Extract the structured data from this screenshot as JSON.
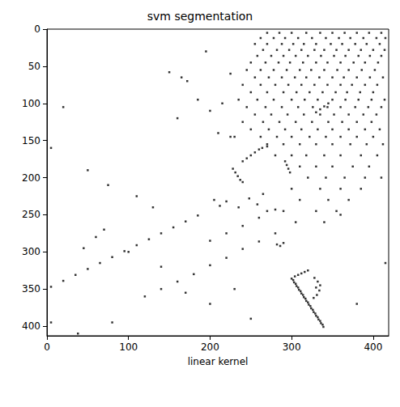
{
  "chart_data": {
    "type": "scatter",
    "title": "svm segmentation",
    "x_label": "linear kernel",
    "marker": "square",
    "color": "#000000",
    "grid": false,
    "xlim": [
      0,
      419
    ],
    "ylim": [
      0,
      413
    ],
    "xticks": [
      0,
      100,
      200,
      300,
      400
    ],
    "yticks": [
      0,
      50,
      100,
      150,
      200,
      250,
      300,
      350,
      400
    ],
    "x": [
      300,
      303,
      306,
      309,
      312,
      315,
      318,
      321,
      324,
      327,
      330,
      333,
      336,
      339,
      302,
      305,
      308,
      311,
      314,
      317,
      320,
      323,
      326,
      329,
      332,
      335,
      338,
      304,
      308,
      312,
      316,
      320,
      328,
      332,
      330,
      334,
      331,
      327,
      335,
      228,
      231,
      234,
      237,
      240,
      240,
      245,
      250,
      255,
      260,
      264,
      270,
      292,
      294,
      296,
      298,
      330,
      335,
      340,
      345,
      270,
      285,
      300,
      318,
      335,
      350,
      365,
      380,
      395,
      410,
      262,
      278,
      292,
      308,
      325,
      342,
      358,
      372,
      388,
      404,
      415,
      255,
      270,
      288,
      302,
      315,
      330,
      348,
      362,
      378,
      392,
      408,
      265,
      282,
      297,
      312,
      328,
      340,
      355,
      370,
      385,
      400,
      414,
      258,
      275,
      290,
      305,
      320,
      336,
      352,
      366,
      382,
      396,
      410,
      250,
      268,
      284,
      298,
      314,
      330,
      344,
      360,
      376,
      390,
      406,
      245,
      262,
      278,
      294,
      310,
      324,
      340,
      356,
      370,
      386,
      402,
      255,
      272,
      288,
      304,
      318,
      334,
      350,
      364,
      380,
      396,
      412,
      240,
      262,
      280,
      296,
      312,
      328,
      344,
      360,
      374,
      390,
      405,
      250,
      270,
      290,
      306,
      322,
      338,
      354,
      368,
      384,
      400,
      235,
      258,
      278,
      300,
      316,
      332,
      350,
      366,
      382,
      398,
      414,
      245,
      268,
      288,
      308,
      326,
      344,
      360,
      378,
      394,
      410,
      255,
      275,
      295,
      315,
      335,
      352,
      370,
      388,
      404,
      240,
      265,
      285,
      305,
      325,
      345,
      362,
      380,
      398,
      250,
      272,
      292,
      312,
      332,
      350,
      370,
      390,
      408,
      225,
      262,
      282,
      300,
      322,
      342,
      360,
      380,
      400,
      270,
      290,
      310,
      330,
      350,
      372,
      392,
      412,
      280,
      300,
      318,
      340,
      360,
      385,
      405,
      310,
      330,
      350,
      375,
      395,
      320,
      342,
      365,
      390,
      410,
      300,
      335,
      360,
      385,
      310,
      345,
      370,
      290,
      330,
      355,
      305,
      340,
      205,
      212,
      220,
      235,
      248,
      258,
      265,
      270,
      282,
      286,
      290,
      150,
      165,
      172,
      185,
      200,
      215,
      225,
      195,
      210,
      230,
      160,
      5,
      20,
      35,
      50,
      65,
      80,
      95,
      110,
      125,
      140,
      155,
      170,
      185,
      120,
      140,
      160,
      180,
      200,
      220,
      240,
      260,
      280,
      200,
      220,
      240,
      260,
      280,
      5,
      38,
      60,
      70,
      80,
      100,
      140,
      170,
      200,
      230,
      250,
      20,
      5,
      50,
      75,
      110,
      130,
      415,
      380,
      360,
      45
    ],
    "values": [
      336,
      341,
      346,
      351,
      356,
      361,
      366,
      371,
      376,
      381,
      386,
      391,
      396,
      401,
      338,
      343,
      348,
      353,
      358,
      363,
      368,
      373,
      378,
      383,
      388,
      393,
      398,
      333,
      331,
      329,
      327,
      325,
      335,
      340,
      348,
      352,
      358,
      362,
      345,
      188,
      193,
      198,
      203,
      206,
      178,
      174,
      170,
      166,
      162,
      160,
      158,
      178,
      183,
      188,
      193,
      112,
      108,
      104,
      100,
      5,
      5,
      5,
      5,
      5,
      5,
      5,
      5,
      5,
      5,
      12,
      12,
      12,
      12,
      12,
      12,
      12,
      12,
      12,
      12,
      12,
      20,
      20,
      20,
      20,
      20,
      20,
      20,
      20,
      20,
      20,
      20,
      28,
      28,
      28,
      28,
      28,
      28,
      28,
      28,
      28,
      28,
      28,
      36,
      36,
      36,
      36,
      36,
      36,
      36,
      36,
      36,
      36,
      36,
      45,
      45,
      45,
      45,
      45,
      45,
      45,
      45,
      45,
      45,
      45,
      55,
      55,
      55,
      55,
      55,
      55,
      55,
      55,
      55,
      55,
      55,
      65,
      65,
      65,
      65,
      65,
      65,
      65,
      65,
      65,
      65,
      65,
      75,
      75,
      75,
      75,
      75,
      75,
      75,
      75,
      75,
      75,
      75,
      85,
      85,
      85,
      85,
      85,
      85,
      85,
      85,
      85,
      85,
      95,
      95,
      95,
      95,
      95,
      95,
      95,
      95,
      95,
      95,
      95,
      105,
      105,
      105,
      105,
      105,
      105,
      105,
      105,
      105,
      105,
      115,
      115,
      115,
      115,
      115,
      115,
      115,
      115,
      115,
      125,
      125,
      125,
      125,
      125,
      125,
      125,
      125,
      125,
      135,
      135,
      135,
      135,
      135,
      135,
      135,
      135,
      135,
      145,
      145,
      145,
      145,
      145,
      145,
      145,
      145,
      145,
      155,
      155,
      155,
      155,
      155,
      155,
      155,
      155,
      170,
      170,
      170,
      170,
      170,
      170,
      170,
      185,
      185,
      185,
      185,
      185,
      200,
      200,
      200,
      200,
      200,
      215,
      215,
      215,
      215,
      230,
      230,
      230,
      245,
      245,
      245,
      260,
      260,
      230,
      238,
      232,
      240,
      228,
      236,
      222,
      245,
      290,
      292,
      288,
      58,
      65,
      70,
      95,
      110,
      100,
      60,
      30,
      140,
      145,
      120,
      347,
      339,
      331,
      323,
      315,
      307,
      299,
      291,
      283,
      275,
      267,
      259,
      251,
      360,
      350,
      340,
      330,
      318,
      308,
      296,
      286,
      275,
      285,
      275,
      265,
      254,
      243,
      395,
      410,
      280,
      270,
      395,
      300,
      320,
      355,
      370,
      350,
      390,
      105,
      160,
      190,
      210,
      225,
      240,
      315,
      370,
      250,
      295
    ]
  }
}
